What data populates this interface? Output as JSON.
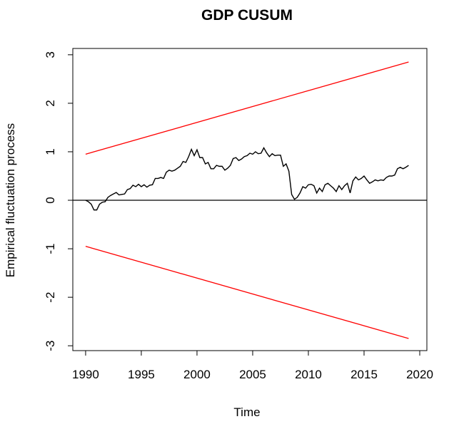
{
  "chart_data": {
    "type": "line",
    "title": "GDP CUSUM",
    "xlabel": "Time",
    "ylabel": "Empirical fluctuation process",
    "xlim": [
      1988.85,
      2020.64
    ],
    "ylim": [
      -3.1,
      3.13
    ],
    "xticks": [
      1990,
      1995,
      2000,
      2005,
      2010,
      2015,
      2020
    ],
    "yticks": [
      -3,
      -2,
      -1,
      0,
      1,
      2,
      3
    ],
    "hline": 0,
    "x": [
      1990,
      1990.25,
      1990.5,
      1990.75,
      1991,
      1991.25,
      1991.5,
      1991.75,
      1992,
      1992.25,
      1992.5,
      1992.75,
      1993,
      1993.25,
      1993.5,
      1993.75,
      1994,
      1994.25,
      1994.5,
      1994.75,
      1995,
      1995.25,
      1995.5,
      1995.75,
      1996,
      1996.25,
      1996.5,
      1996.75,
      1997,
      1997.25,
      1997.5,
      1997.75,
      1998,
      1998.25,
      1998.5,
      1998.75,
      1999,
      1999.25,
      1999.5,
      1999.75,
      2000,
      2000.25,
      2000.5,
      2000.75,
      2001,
      2001.25,
      2001.5,
      2001.75,
      2002,
      2002.25,
      2002.5,
      2002.75,
      2003,
      2003.25,
      2003.5,
      2003.75,
      2004,
      2004.25,
      2004.5,
      2004.75,
      2005,
      2005.25,
      2005.5,
      2005.75,
      2006,
      2006.25,
      2006.5,
      2006.75,
      2007,
      2007.25,
      2007.5,
      2007.75,
      2008,
      2008.25,
      2008.5,
      2008.75,
      2009,
      2009.25,
      2009.5,
      2009.75,
      2010,
      2010.25,
      2010.5,
      2010.75,
      2011,
      2011.25,
      2011.5,
      2011.75,
      2012,
      2012.25,
      2012.5,
      2012.75,
      2013,
      2013.25,
      2013.5,
      2013.75,
      2014,
      2014.25,
      2014.5,
      2014.75,
      2015,
      2015.25,
      2015.5,
      2015.75,
      2016,
      2016.25,
      2016.5,
      2016.75,
      2017,
      2017.25,
      2017.5,
      2017.75,
      2018,
      2018.25,
      2018.5,
      2018.75,
      2019
    ],
    "series": [
      {
        "color": "#000000",
        "values": [
          0,
          -0.03,
          -0.08,
          -0.2,
          -0.2,
          -0.08,
          -0.04,
          -0.03,
          0.06,
          0.1,
          0.13,
          0.16,
          0.11,
          0.12,
          0.13,
          0.22,
          0.24,
          0.31,
          0.28,
          0.33,
          0.28,
          0.32,
          0.27,
          0.31,
          0.32,
          0.45,
          0.45,
          0.47,
          0.45,
          0.58,
          0.62,
          0.6,
          0.62,
          0.66,
          0.7,
          0.8,
          0.78,
          0.9,
          1.05,
          0.92,
          1.04,
          0.88,
          0.88,
          0.75,
          0.78,
          0.65,
          0.65,
          0.72,
          0.7,
          0.7,
          0.62,
          0.66,
          0.72,
          0.86,
          0.88,
          0.82,
          0.85,
          0.9,
          0.92,
          0.97,
          0.95,
          1.0,
          0.96,
          0.97,
          1.08,
          0.98,
          0.9,
          0.96,
          0.92,
          0.93,
          0.93,
          0.7,
          0.75,
          0.6,
          0.12,
          0.02,
          0.06,
          0.15,
          0.28,
          0.25,
          0.32,
          0.33,
          0.3,
          0.15,
          0.25,
          0.18,
          0.32,
          0.35,
          0.3,
          0.25,
          0.18,
          0.3,
          0.22,
          0.3,
          0.35,
          0.15,
          0.4,
          0.48,
          0.42,
          0.45,
          0.5,
          0.42,
          0.35,
          0.38,
          0.42,
          0.4,
          0.42,
          0.41,
          0.47,
          0.5,
          0.5,
          0.52,
          0.65,
          0.68,
          0.65,
          0.68,
          0.72
        ]
      }
    ],
    "boundary": {
      "color": "#ff0000",
      "x": [
        1990,
        2019
      ],
      "upper": [
        0.95,
        2.85
      ],
      "lower": [
        -0.95,
        -2.85
      ]
    }
  }
}
